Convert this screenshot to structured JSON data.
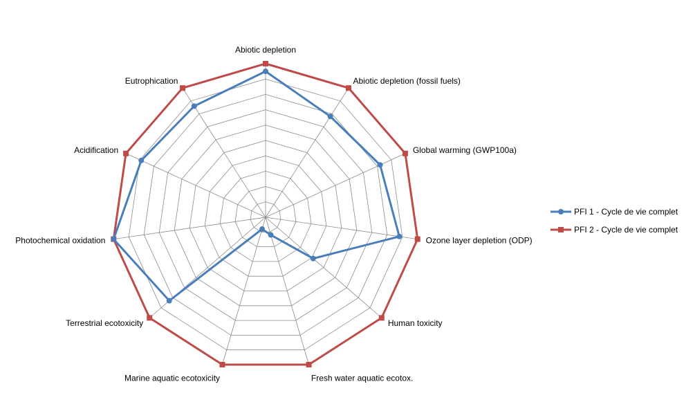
{
  "chart_data": {
    "type": "radar",
    "title": "",
    "categories": [
      "Abiotic depletion",
      "Abiotic depletion (fossil fuels)",
      "Global warming (GWP100a)",
      "Ozone layer depletion (ODP)",
      "Human toxicity",
      "Fresh water aquatic ecotox.",
      "Marine aquatic ecotoxicity",
      "Terrestrial ecotoxicity",
      "Photochemical oxidation",
      "Acidification",
      "Eutrophication"
    ],
    "rlim": [
      0,
      100
    ],
    "ring_count": 10,
    "grid": true,
    "legend_position": "right",
    "series": [
      {
        "name": "PFI 1 - Cycle de vie complet",
        "color": "#4a7ebb",
        "marker": "circle",
        "values": [
          95,
          78,
          82,
          88,
          41,
          12,
          8,
          83,
          100,
          89,
          86
        ]
      },
      {
        "name": "PFI 2 - Cycle de vie complet",
        "color": "#be4b48",
        "marker": "square",
        "values": [
          100,
          100,
          100,
          100,
          100,
          100,
          100,
          100,
          100,
          100,
          100
        ]
      }
    ]
  }
}
